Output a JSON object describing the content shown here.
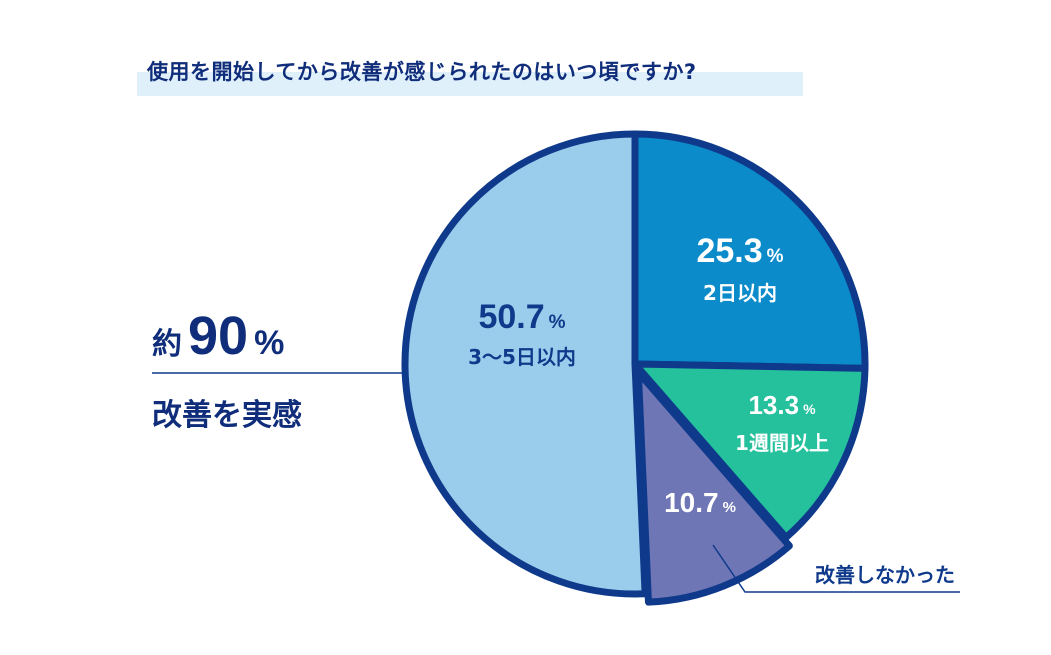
{
  "title": "使用を開始してから改善が感じられたのはいつ頃ですか?",
  "callout": {
    "prefix": "約",
    "value": "90",
    "unit": "%",
    "caption": "改善を実感"
  },
  "chart_data": {
    "type": "pie",
    "title": "使用を開始してから改善が感じられたのはいつ頃ですか?",
    "slices": [
      {
        "label": "2日以内",
        "value": 25.3,
        "value_label": "25.3",
        "color": "#0b8bca"
      },
      {
        "label": "1週間以上",
        "value": 13.3,
        "value_label": "13.3",
        "color": "#25c09c"
      },
      {
        "label": "改善しなかった",
        "value": 10.7,
        "value_label": "10.7",
        "color": "#6f76b5"
      },
      {
        "label": "3〜5日以内",
        "value": 50.7,
        "value_label": "50.7",
        "color": "#99cdeb"
      }
    ],
    "unit": "%",
    "start_angle_deg": 0,
    "direction": "clockwise",
    "outline_color": "#0f3a8c"
  }
}
